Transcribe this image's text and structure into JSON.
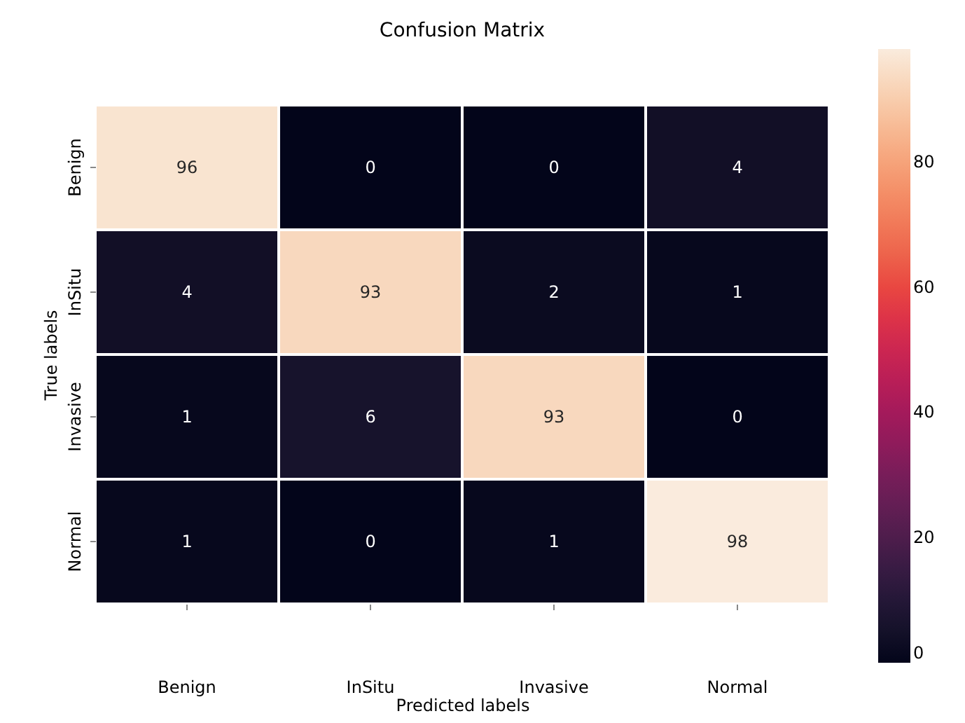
{
  "chart_data": {
    "type": "heatmap",
    "title": "Confusion Matrix",
    "xlabel": "Predicted labels",
    "ylabel": "True labels",
    "categories": [
      "Benign",
      "InSitu",
      "Invasive",
      "Normal"
    ],
    "y_categories": [
      "Benign",
      "InSitu",
      "Invasive",
      "Normal"
    ],
    "cells": [
      [
        96,
        0,
        0,
        4
      ],
      [
        4,
        93,
        2,
        1
      ],
      [
        1,
        6,
        93,
        0
      ],
      [
        1,
        0,
        1,
        98
      ]
    ],
    "clim": [
      0,
      98
    ],
    "cticks": [
      0,
      20,
      40,
      60,
      80
    ],
    "data_labels": true
  }
}
